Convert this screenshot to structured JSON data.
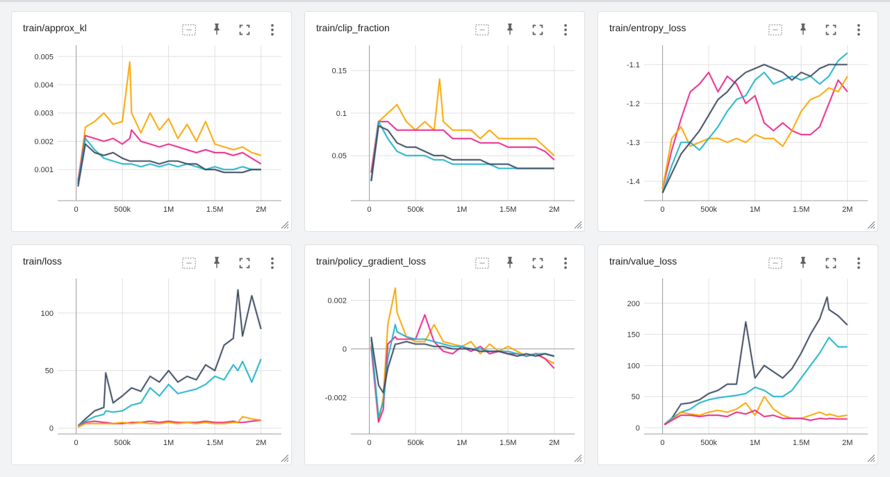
{
  "icons": [
    "fit-domain-icon",
    "pin-icon",
    "fullscreen-icon",
    "more-vert-icon"
  ],
  "colors": {
    "orange": "#f9a600",
    "magenta": "#e7298a",
    "cyan": "#1fb3c9",
    "slate": "#3c4a5e"
  },
  "charts": [
    {
      "title": "train/approx_kl"
    },
    {
      "title": "train/clip_fraction"
    },
    {
      "title": "train/entropy_loss"
    },
    {
      "title": "train/loss"
    },
    {
      "title": "train/policy_gradient_loss"
    },
    {
      "title": "train/value_loss"
    }
  ],
  "chart_data": [
    {
      "type": "line",
      "title": "train/approx_kl",
      "xlim": [
        -200000,
        2220000
      ],
      "ylim": [
        -0.0001,
        0.0054
      ],
      "xticks": [
        0,
        500000,
        1000000,
        1500000,
        2000000
      ],
      "xtick_labels": [
        "0",
        "500k",
        "1M",
        "1.5M",
        "2M"
      ],
      "yticks": [
        0.001,
        0.002,
        0.003,
        0.004,
        0.005
      ],
      "ytick_labels": [
        "0.001",
        "0.002",
        "0.003",
        "0.004",
        "0.005"
      ],
      "x": [
        20000,
        100000,
        200000,
        300000,
        400000,
        500000,
        580000,
        600000,
        700000,
        800000,
        900000,
        1000000,
        1100000,
        1200000,
        1300000,
        1400000,
        1500000,
        1600000,
        1700000,
        1800000,
        1900000,
        2000000
      ],
      "series": [
        {
          "color": "orange",
          "values": [
            0.0005,
            0.0025,
            0.0027,
            0.003,
            0.0026,
            0.0027,
            0.0048,
            0.003,
            0.0023,
            0.003,
            0.0024,
            0.0028,
            0.0021,
            0.0026,
            0.002,
            0.0027,
            0.0019,
            0.0018,
            0.0017,
            0.0018,
            0.0016,
            0.0015
          ]
        },
        {
          "color": "magenta",
          "values": [
            0.0006,
            0.0022,
            0.0021,
            0.002,
            0.0021,
            0.0019,
            0.0021,
            0.0024,
            0.002,
            0.0019,
            0.0018,
            0.0019,
            0.0018,
            0.0017,
            0.0016,
            0.0017,
            0.0016,
            0.0016,
            0.0015,
            0.0016,
            0.0014,
            0.0012
          ]
        },
        {
          "color": "cyan",
          "values": [
            0.0005,
            0.0021,
            0.0017,
            0.0014,
            0.0013,
            0.0012,
            0.0012,
            0.0012,
            0.0011,
            0.0012,
            0.0011,
            0.0012,
            0.0011,
            0.0012,
            0.0011,
            0.001,
            0.0011,
            0.001,
            0.001,
            0.0011,
            0.001,
            0.001
          ]
        },
        {
          "color": "slate",
          "values": [
            0.0004,
            0.0019,
            0.0016,
            0.0015,
            0.0016,
            0.0014,
            0.0013,
            0.0013,
            0.0013,
            0.0013,
            0.0012,
            0.0013,
            0.0013,
            0.0012,
            0.0012,
            0.001,
            0.001,
            0.0009,
            0.0009,
            0.0009,
            0.001,
            0.001
          ]
        }
      ]
    },
    {
      "type": "line",
      "title": "train/clip_fraction",
      "xlim": [
        -200000,
        2220000
      ],
      "ylim": [
        -0.003,
        0.18
      ],
      "xticks": [
        0,
        500000,
        1000000,
        1500000,
        2000000
      ],
      "xtick_labels": [
        "0",
        "500k",
        "1M",
        "1.5M",
        "2M"
      ],
      "yticks": [
        0.05,
        0.1,
        0.15
      ],
      "ytick_labels": [
        "0.05",
        "0.1",
        "0.15"
      ],
      "x": [
        20000,
        100000,
        200000,
        300000,
        400000,
        500000,
        600000,
        700000,
        760000,
        800000,
        900000,
        1000000,
        1100000,
        1200000,
        1300000,
        1400000,
        1500000,
        1600000,
        1700000,
        1800000,
        1900000,
        2000000
      ],
      "series": [
        {
          "color": "orange",
          "values": [
            0.03,
            0.09,
            0.1,
            0.11,
            0.09,
            0.08,
            0.09,
            0.08,
            0.14,
            0.09,
            0.08,
            0.08,
            0.08,
            0.07,
            0.08,
            0.07,
            0.07,
            0.07,
            0.07,
            0.07,
            0.06,
            0.05
          ]
        },
        {
          "color": "magenta",
          "values": [
            0.03,
            0.09,
            0.09,
            0.08,
            0.08,
            0.08,
            0.08,
            0.08,
            0.08,
            0.08,
            0.07,
            0.07,
            0.07,
            0.065,
            0.065,
            0.065,
            0.06,
            0.06,
            0.06,
            0.06,
            0.055,
            0.045
          ]
        },
        {
          "color": "cyan",
          "values": [
            0.02,
            0.09,
            0.07,
            0.055,
            0.05,
            0.05,
            0.05,
            0.045,
            0.045,
            0.045,
            0.04,
            0.04,
            0.04,
            0.04,
            0.04,
            0.035,
            0.035,
            0.035,
            0.035,
            0.035,
            0.035,
            0.035
          ]
        },
        {
          "color": "slate",
          "values": [
            0.02,
            0.085,
            0.08,
            0.065,
            0.06,
            0.06,
            0.055,
            0.05,
            0.05,
            0.05,
            0.045,
            0.045,
            0.045,
            0.045,
            0.04,
            0.04,
            0.04,
            0.035,
            0.035,
            0.035,
            0.035,
            0.035
          ]
        }
      ]
    },
    {
      "type": "line",
      "title": "train/entropy_loss",
      "xlim": [
        -200000,
        2220000
      ],
      "ylim": [
        -1.45,
        -1.05
      ],
      "xticks": [
        0,
        500000,
        1000000,
        1500000,
        2000000
      ],
      "xtick_labels": [
        "0",
        "500k",
        "1M",
        "1.5M",
        "2M"
      ],
      "yticks": [
        -1.4,
        -1.3,
        -1.2,
        -1.1
      ],
      "ytick_labels": [
        "-1.4",
        "-1.3",
        "-1.2",
        "-1.1"
      ],
      "x": [
        0,
        100000,
        200000,
        300000,
        400000,
        500000,
        600000,
        700000,
        800000,
        900000,
        1000000,
        1100000,
        1200000,
        1300000,
        1400000,
        1500000,
        1600000,
        1700000,
        1800000,
        1900000,
        2000000
      ],
      "series": [
        {
          "color": "magenta",
          "values": [
            -1.42,
            -1.32,
            -1.24,
            -1.17,
            -1.15,
            -1.12,
            -1.17,
            -1.13,
            -1.15,
            -1.2,
            -1.18,
            -1.25,
            -1.27,
            -1.25,
            -1.27,
            -1.28,
            -1.28,
            -1.26,
            -1.2,
            -1.14,
            -1.17
          ]
        },
        {
          "color": "orange",
          "values": [
            -1.42,
            -1.29,
            -1.26,
            -1.31,
            -1.3,
            -1.29,
            -1.29,
            -1.3,
            -1.29,
            -1.3,
            -1.28,
            -1.29,
            -1.29,
            -1.31,
            -1.27,
            -1.22,
            -1.19,
            -1.18,
            -1.16,
            -1.17,
            -1.13
          ]
        },
        {
          "color": "cyan",
          "values": [
            -1.43,
            -1.36,
            -1.3,
            -1.3,
            -1.32,
            -1.29,
            -1.26,
            -1.22,
            -1.19,
            -1.18,
            -1.14,
            -1.12,
            -1.15,
            -1.14,
            -1.13,
            -1.14,
            -1.13,
            -1.15,
            -1.13,
            -1.09,
            -1.07
          ]
        },
        {
          "color": "slate",
          "values": [
            -1.43,
            -1.38,
            -1.33,
            -1.3,
            -1.27,
            -1.23,
            -1.19,
            -1.17,
            -1.14,
            -1.12,
            -1.11,
            -1.1,
            -1.11,
            -1.12,
            -1.14,
            -1.12,
            -1.13,
            -1.11,
            -1.1,
            -1.1,
            -1.1
          ]
        }
      ]
    },
    {
      "type": "line",
      "title": "train/loss",
      "xlim": [
        -200000,
        2220000
      ],
      "ylim": [
        -5,
        130
      ],
      "xticks": [
        0,
        500000,
        1000000,
        1500000,
        2000000
      ],
      "xtick_labels": [
        "0",
        "500k",
        "1M",
        "1.5M",
        "2M"
      ],
      "yticks": [
        0,
        50,
        100
      ],
      "ytick_labels": [
        "0",
        "50",
        "100"
      ],
      "x": [
        20000,
        100000,
        200000,
        300000,
        320000,
        400000,
        500000,
        600000,
        700000,
        800000,
        900000,
        1000000,
        1100000,
        1200000,
        1300000,
        1400000,
        1500000,
        1600000,
        1700000,
        1750000,
        1800000,
        1900000,
        2000000
      ],
      "series": [
        {
          "color": "slate",
          "values": [
            2,
            8,
            15,
            18,
            48,
            22,
            28,
            35,
            32,
            45,
            40,
            50,
            40,
            45,
            42,
            55,
            50,
            72,
            78,
            120,
            80,
            115,
            86
          ]
        },
        {
          "color": "cyan",
          "values": [
            2,
            6,
            10,
            12,
            15,
            14,
            15,
            20,
            22,
            35,
            28,
            38,
            30,
            32,
            34,
            38,
            45,
            42,
            55,
            50,
            58,
            40,
            60
          ]
        },
        {
          "color": "magenta",
          "values": [
            1,
            5,
            6,
            5,
            5,
            4,
            4,
            5,
            5,
            6,
            5,
            6,
            5,
            5,
            5,
            6,
            5,
            5,
            6,
            5,
            5,
            6,
            7
          ]
        },
        {
          "color": "orange",
          "values": [
            1,
            4,
            4,
            4,
            4,
            4,
            5,
            4,
            5,
            4,
            4,
            5,
            4,
            5,
            4,
            5,
            4,
            4,
            5,
            5,
            10,
            8,
            7
          ]
        }
      ]
    },
    {
      "type": "line",
      "title": "train/policy_gradient_loss",
      "xlim": [
        -200000,
        2220000
      ],
      "ylim": [
        -0.0035,
        0.0029
      ],
      "xticks": [
        0,
        500000,
        1000000,
        1500000,
        2000000
      ],
      "xtick_labels": [
        "0",
        "500k",
        "1M",
        "1.5M",
        "2M"
      ],
      "yticks": [
        -0.002,
        0,
        0.002
      ],
      "ytick_labels": [
        "-0.002",
        "0",
        "0.002"
      ],
      "x": [
        20000,
        100000,
        150000,
        200000,
        280000,
        300000,
        400000,
        500000,
        600000,
        700000,
        800000,
        900000,
        1000000,
        1100000,
        1200000,
        1300000,
        1400000,
        1500000,
        1600000,
        1700000,
        1800000,
        1900000,
        2000000
      ],
      "series": [
        {
          "color": "orange",
          "values": [
            0.0002,
            -0.003,
            -0.002,
            0.001,
            0.0025,
            0.0015,
            0.0005,
            0.0003,
            0.0003,
            0.001,
            0.0003,
            0.0002,
            0.0001,
            0.0003,
            -0.0002,
            0.0002,
            -0.0001,
            0.0001,
            -0.0001,
            -0.0003,
            -0.0002,
            -0.0004,
            -0.0006
          ]
        },
        {
          "color": "magenta",
          "values": [
            0.0001,
            -0.003,
            -0.0025,
            0.0002,
            0.0005,
            0.0004,
            0.0004,
            0.0004,
            0.0014,
            0.0003,
            -0.0001,
            -0.0002,
            0.0001,
            -0.0001,
            0.0001,
            -0.0002,
            -0.0001,
            -0.0002,
            -0.0002,
            -0.0003,
            -0.0002,
            -0.0004,
            -0.0008
          ]
        },
        {
          "color": "cyan",
          "values": [
            0.0004,
            -0.0028,
            -0.0022,
            -0.0004,
            0.001,
            0.0007,
            0.0005,
            0.0004,
            0.0004,
            0.0003,
            0.0002,
            0.0001,
            0.0001,
            0,
            0,
            -0.0001,
            -0.0001,
            -0.0001,
            -0.0002,
            -0.0003,
            -0.0002,
            -0.0002,
            -0.0003
          ]
        },
        {
          "color": "slate",
          "values": [
            0.0005,
            -0.0015,
            -0.0018,
            -0.0008,
            0.0002,
            0.0002,
            0.0003,
            0.0002,
            0.0002,
            0.0001,
            0.0001,
            0,
            0,
            0,
            -0.0001,
            -0.0001,
            -0.0001,
            -0.0002,
            -0.0003,
            -0.0002,
            -0.0003,
            -0.0002,
            -0.0003
          ]
        }
      ]
    },
    {
      "type": "line",
      "title": "train/value_loss",
      "xlim": [
        -200000,
        2220000
      ],
      "ylim": [
        -10,
        240
      ],
      "xticks": [
        0,
        500000,
        1000000,
        1500000,
        2000000
      ],
      "xtick_labels": [
        "0",
        "500k",
        "1M",
        "1.5M",
        "2M"
      ],
      "yticks": [
        0,
        50,
        100,
        150,
        200
      ],
      "ytick_labels": [
        "0",
        "50",
        "100",
        "150",
        "200"
      ],
      "x": [
        20000,
        100000,
        200000,
        300000,
        400000,
        500000,
        600000,
        700000,
        800000,
        900000,
        1000000,
        1100000,
        1200000,
        1300000,
        1400000,
        1500000,
        1600000,
        1700000,
        1780000,
        1800000,
        1900000,
        2000000
      ],
      "series": [
        {
          "color": "slate",
          "values": [
            5,
            15,
            38,
            40,
            45,
            55,
            60,
            70,
            70,
            170,
            80,
            100,
            90,
            80,
            95,
            120,
            150,
            175,
            210,
            190,
            180,
            165
          ]
        },
        {
          "color": "cyan",
          "values": [
            5,
            15,
            25,
            30,
            40,
            45,
            48,
            50,
            52,
            55,
            65,
            60,
            50,
            50,
            60,
            80,
            100,
            120,
            140,
            145,
            130,
            130
          ]
        },
        {
          "color": "orange",
          "values": [
            5,
            12,
            25,
            22,
            20,
            25,
            28,
            25,
            30,
            40,
            20,
            50,
            30,
            20,
            15,
            15,
            20,
            25,
            20,
            22,
            18,
            20
          ]
        },
        {
          "color": "magenta",
          "values": [
            5,
            12,
            20,
            20,
            18,
            20,
            20,
            18,
            25,
            22,
            28,
            18,
            20,
            15,
            15,
            15,
            12,
            15,
            14,
            15,
            14,
            14
          ]
        }
      ]
    }
  ]
}
